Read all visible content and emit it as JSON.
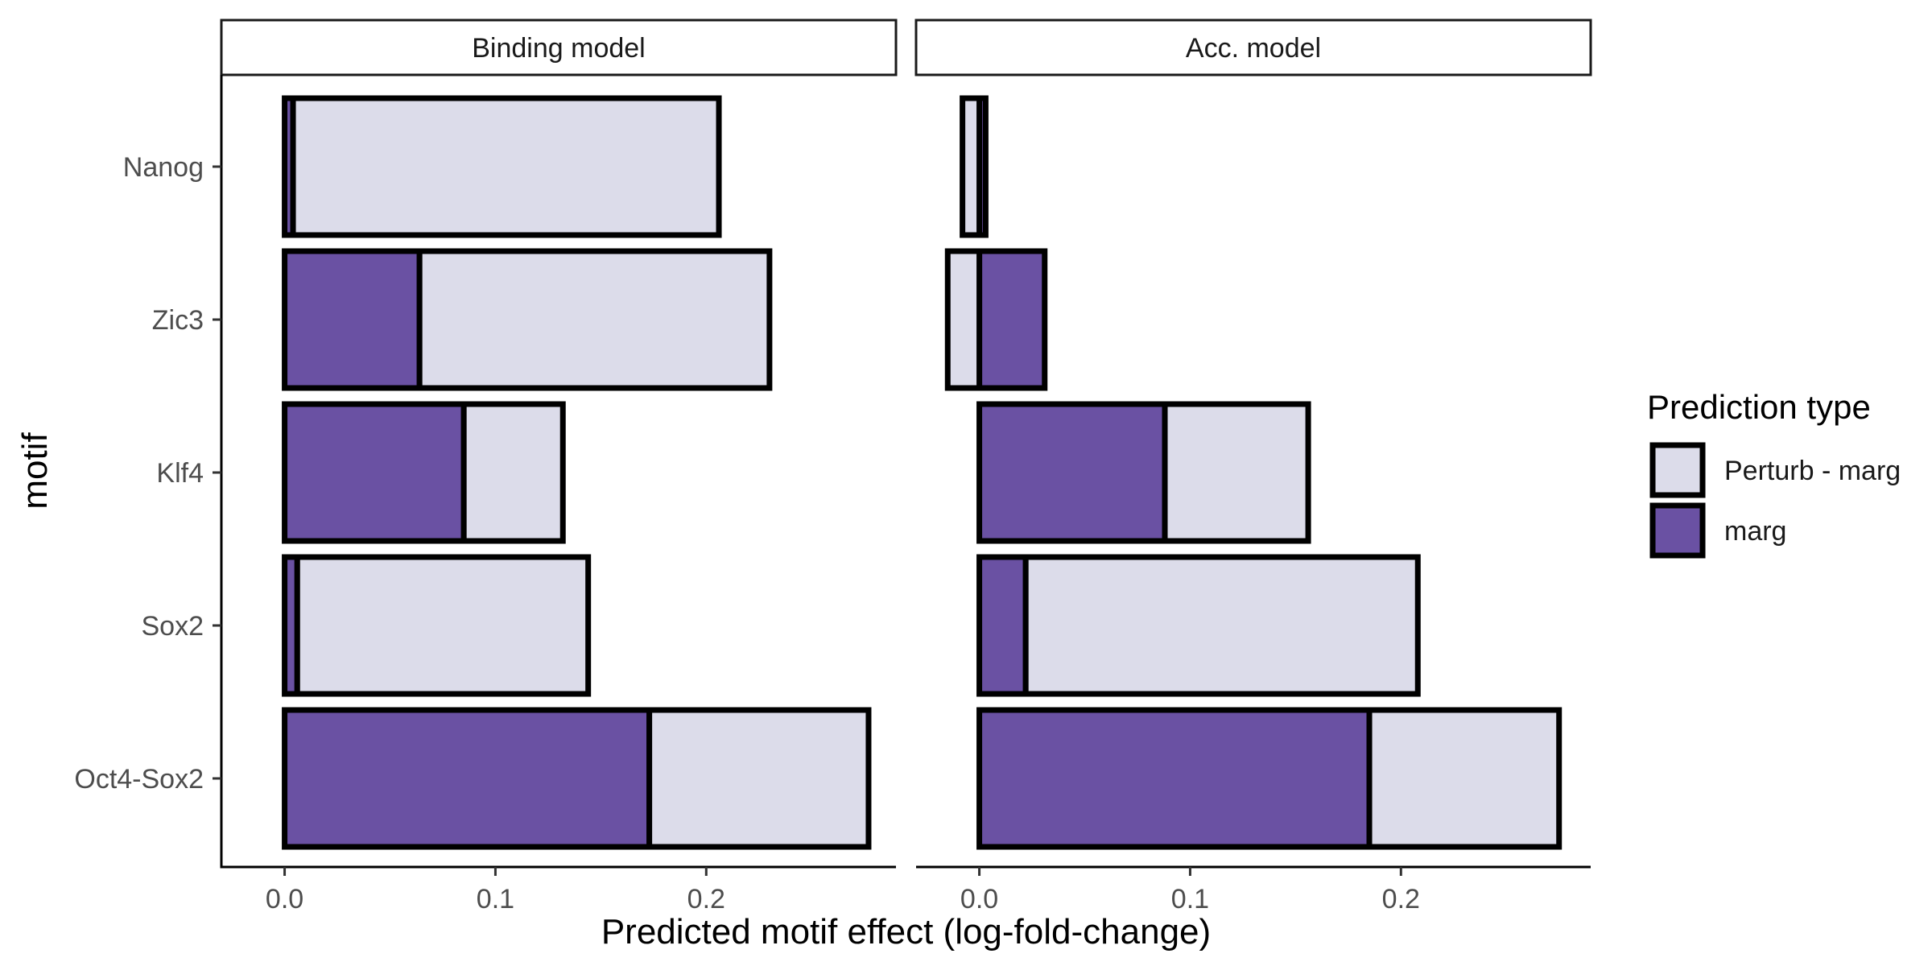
{
  "chart_data": {
    "type": "bar",
    "orientation": "horizontal",
    "stacked": true,
    "categories": [
      "Nanog",
      "Zic3",
      "Klf4",
      "Sox2",
      "Oct4-Sox2"
    ],
    "xlabel": "Predicted motif effect (log-fold-change)",
    "ylabel": "motif",
    "x_ticks": [
      "0.0",
      "0.1",
      "0.2"
    ],
    "x_tick_values": [
      0,
      0.1,
      0.2
    ],
    "xlim": [
      -0.03,
      0.29
    ],
    "grid": false,
    "legend": {
      "title": "Prediction type",
      "placement": "right",
      "entries": [
        "Perturb - marg",
        "marg"
      ]
    },
    "colors": {
      "Perturb - marg": "#dcdcea",
      "marg": "#6a51a3",
      "outline": "#000000"
    },
    "panels": [
      {
        "title": "Binding model",
        "series": [
          {
            "name": "marg",
            "values": [
              0.004,
              0.064,
              0.085,
              0.006,
              0.173
            ]
          },
          {
            "name": "Perturb - marg",
            "values": [
              0.202,
              0.166,
              0.047,
              0.138,
              0.104
            ]
          }
        ]
      },
      {
        "title": "Acc. model",
        "series": [
          {
            "name": "marg",
            "values": [
              0.003,
              0.031,
              0.088,
              0.022,
              0.185
            ]
          },
          {
            "name": "Perturb - marg",
            "values": [
              -0.008,
              -0.015,
              0.068,
              0.186,
              0.09
            ]
          }
        ]
      }
    ]
  }
}
